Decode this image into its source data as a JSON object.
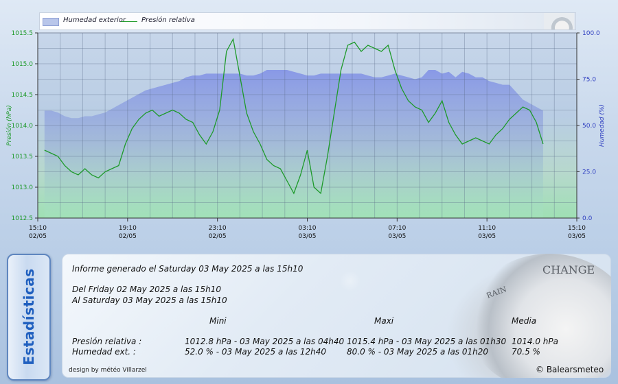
{
  "chart_data": {
    "type": "line",
    "legend": {
      "placement": "top",
      "entries": [
        "Humedad exterior",
        "Presión relativa"
      ]
    },
    "x_ticks": [
      {
        "time": "15:10",
        "date": "02/05"
      },
      {
        "time": "19:10",
        "date": "02/05"
      },
      {
        "time": "23:10",
        "date": "02/05"
      },
      {
        "time": "03:10",
        "date": "03/05"
      },
      {
        "time": "07:10",
        "date": "03/05"
      },
      {
        "time": "11:10",
        "date": "03/05"
      },
      {
        "time": "15:10",
        "date": "03/05"
      }
    ],
    "x_unit": "hours since 15:10 02/05",
    "xlim": [
      0,
      24
    ],
    "y_left": {
      "label": "Presión (hPa)",
      "ticks": [
        "1012.5",
        "1013.0",
        "1013.5",
        "1014.0",
        "1014.5",
        "1015.0",
        "1015.5"
      ],
      "ylim": [
        1012.5,
        1015.5
      ],
      "color": "#1e9a2a"
    },
    "y_right": {
      "label": "Humedad (%)",
      "ticks": [
        "0.0",
        "25.0",
        "50.0",
        "75.0",
        "100.0"
      ],
      "ylim": [
        0,
        100
      ],
      "color": "#2f3fc0"
    },
    "grid": true,
    "series": [
      {
        "name": "Humedad exterior",
        "axis": "right",
        "kind": "area",
        "color": "#8597e0",
        "x": [
          0.3,
          0.6,
          0.9,
          1.2,
          1.5,
          1.8,
          2.1,
          2.4,
          2.7,
          3.0,
          3.3,
          3.6,
          3.9,
          4.2,
          4.5,
          4.8,
          5.1,
          5.4,
          5.7,
          6.0,
          6.3,
          6.6,
          6.9,
          7.2,
          7.5,
          7.8,
          8.1,
          8.4,
          8.7,
          9.0,
          9.3,
          9.6,
          9.9,
          10.2,
          10.5,
          10.8,
          11.1,
          11.4,
          11.7,
          12.0,
          12.3,
          12.6,
          12.9,
          13.2,
          13.5,
          13.8,
          14.1,
          14.4,
          14.7,
          15.0,
          15.3,
          15.6,
          15.9,
          16.2,
          16.5,
          16.8,
          17.1,
          17.4,
          17.7,
          18.0,
          18.3,
          18.6,
          18.9,
          19.2,
          19.5,
          19.8,
          20.1,
          20.4,
          20.7,
          21.0,
          21.3,
          21.6,
          21.9,
          22.2,
          22.5
        ],
        "values": [
          58,
          58,
          57,
          55,
          54,
          54,
          55,
          55,
          56,
          57,
          59,
          61,
          63,
          65,
          67,
          69,
          70,
          71,
          72,
          73,
          74,
          76,
          77,
          77,
          78,
          78,
          78,
          78,
          78,
          78,
          77,
          77,
          78,
          80,
          80,
          80,
          80,
          79,
          78,
          77,
          77,
          78,
          78,
          78,
          78,
          78,
          78,
          78,
          77,
          76,
          76,
          77,
          78,
          77,
          76,
          75,
          76,
          80,
          80,
          78,
          79,
          76,
          79,
          78,
          76,
          76,
          74,
          73,
          72,
          72,
          68,
          64,
          62,
          60,
          58
        ]
      },
      {
        "name": "Presión relativa",
        "axis": "left",
        "kind": "line",
        "color": "#1e9a2a",
        "x": [
          0.3,
          0.6,
          0.9,
          1.2,
          1.5,
          1.8,
          2.1,
          2.4,
          2.7,
          3.0,
          3.3,
          3.6,
          3.9,
          4.2,
          4.5,
          4.8,
          5.1,
          5.4,
          5.7,
          6.0,
          6.3,
          6.6,
          6.9,
          7.2,
          7.5,
          7.8,
          8.1,
          8.4,
          8.7,
          9.0,
          9.3,
          9.6,
          9.9,
          10.2,
          10.5,
          10.8,
          11.1,
          11.4,
          11.7,
          12.0,
          12.3,
          12.6,
          12.9,
          13.2,
          13.5,
          13.8,
          14.1,
          14.4,
          14.7,
          15.0,
          15.3,
          15.6,
          15.9,
          16.2,
          16.5,
          16.8,
          17.1,
          17.4,
          17.7,
          18.0,
          18.3,
          18.6,
          18.9,
          19.2,
          19.5,
          19.8,
          20.1,
          20.4,
          20.7,
          21.0,
          21.3,
          21.6,
          21.9,
          22.2,
          22.5
        ],
        "values": [
          1013.6,
          1013.55,
          1013.5,
          1013.35,
          1013.25,
          1013.2,
          1013.3,
          1013.2,
          1013.15,
          1013.25,
          1013.3,
          1013.35,
          1013.7,
          1013.95,
          1014.1,
          1014.2,
          1014.25,
          1014.15,
          1014.2,
          1014.25,
          1014.2,
          1014.1,
          1014.05,
          1013.85,
          1013.7,
          1013.9,
          1014.25,
          1015.2,
          1015.4,
          1014.8,
          1014.2,
          1013.9,
          1013.7,
          1013.45,
          1013.35,
          1013.3,
          1013.1,
          1012.9,
          1013.2,
          1013.6,
          1013.0,
          1012.9,
          1013.5,
          1014.2,
          1014.9,
          1015.3,
          1015.35,
          1015.2,
          1015.3,
          1015.25,
          1015.2,
          1015.3,
          1014.9,
          1014.6,
          1014.4,
          1014.3,
          1014.25,
          1014.05,
          1014.2,
          1014.4,
          1014.05,
          1013.85,
          1013.7,
          1013.75,
          1013.8,
          1013.75,
          1013.7,
          1013.85,
          1013.95,
          1014.1,
          1014.2,
          1014.3,
          1014.25,
          1014.05,
          1013.7
        ]
      }
    ]
  },
  "stats": {
    "tab_label": "Estadísticas",
    "report_line": "Informe generado el Saturday 03 May 2025 a las 15h10",
    "from_line": "Del Friday 02 May 2025 a las 15h10",
    "to_line": "Al Saturday 03 May 2025 a las 15h10",
    "col_min": "Mini",
    "col_max": "Maxi",
    "col_avg": "Media",
    "rows": [
      {
        "label": "Presión relativa :",
        "min": "1012.8 hPa - 03 May 2025 a las 04h40",
        "max": "1015.4 hPa - 03 May 2025 a las 01h30",
        "avg": "1014.0 hPa"
      },
      {
        "label": "Humedad ext. :",
        "min": "52.0 % - 03 May 2025 a las 12h40",
        "max": "80.0 % - 03 May 2025 a las 01h20",
        "avg": "70.5 %"
      }
    ],
    "credit": "design by météo Villarzel",
    "copyright": "© Balearsmeteo"
  },
  "gauge_words": {
    "top": "CHANGE",
    "left": "RAIN"
  },
  "colors": {
    "pressure": "#1e9a2a",
    "humidity_axis": "#2f3fc0",
    "humidity_fill": "#8597e0",
    "tab_text": "#1f5fbf"
  }
}
